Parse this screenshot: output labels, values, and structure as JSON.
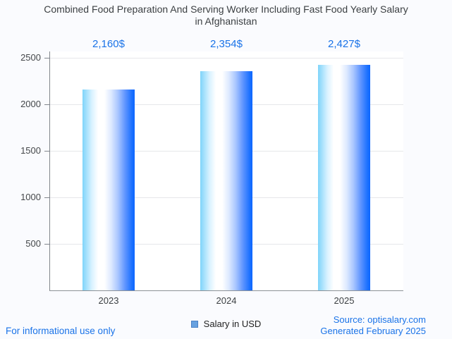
{
  "header": {
    "title_line1": "Combined Food Preparation And Serving Worker Including Fast Food Yearly Salary",
    "title_line2": "in Afghanistan"
  },
  "chart_data": {
    "type": "bar",
    "title": "Combined Food Preparation And Serving Worker Including Fast Food Yearly Salary in Afghanistan",
    "categories": [
      "2023",
      "2024",
      "2025"
    ],
    "values": [
      2160,
      2354,
      2427
    ],
    "value_labels": [
      "2,160$",
      "2,354$",
      "2,427$"
    ],
    "series": [
      {
        "name": "Salary in USD",
        "values": [
          2160,
          2354,
          2427
        ]
      }
    ],
    "xlabel": "",
    "ylabel": "",
    "ylim": [
      0,
      2500
    ],
    "yticks": [
      500,
      1000,
      1500,
      2000,
      2500
    ],
    "grid": true,
    "legend_position": "bottom"
  },
  "legend": {
    "label": "Salary in USD"
  },
  "footer": {
    "disclaimer": "For informational use only",
    "source": "Source: optisalary.com",
    "generated": "Generated February 2025"
  },
  "colors": {
    "accent_blue": "#1a73e8",
    "title_text": "#3c4043",
    "axis_line": "#81868c",
    "gridline": "#e6e7ea",
    "bar_gradient_left": "#7fd4fa",
    "bar_gradient_mid": "#ffffff",
    "bar_gradient_right": "#0d66ff",
    "legend_swatch_fill": "#67a1e0",
    "legend_swatch_border": "#4a80c4",
    "page_background": "#fafbfe",
    "plot_background": "#ffffff"
  }
}
